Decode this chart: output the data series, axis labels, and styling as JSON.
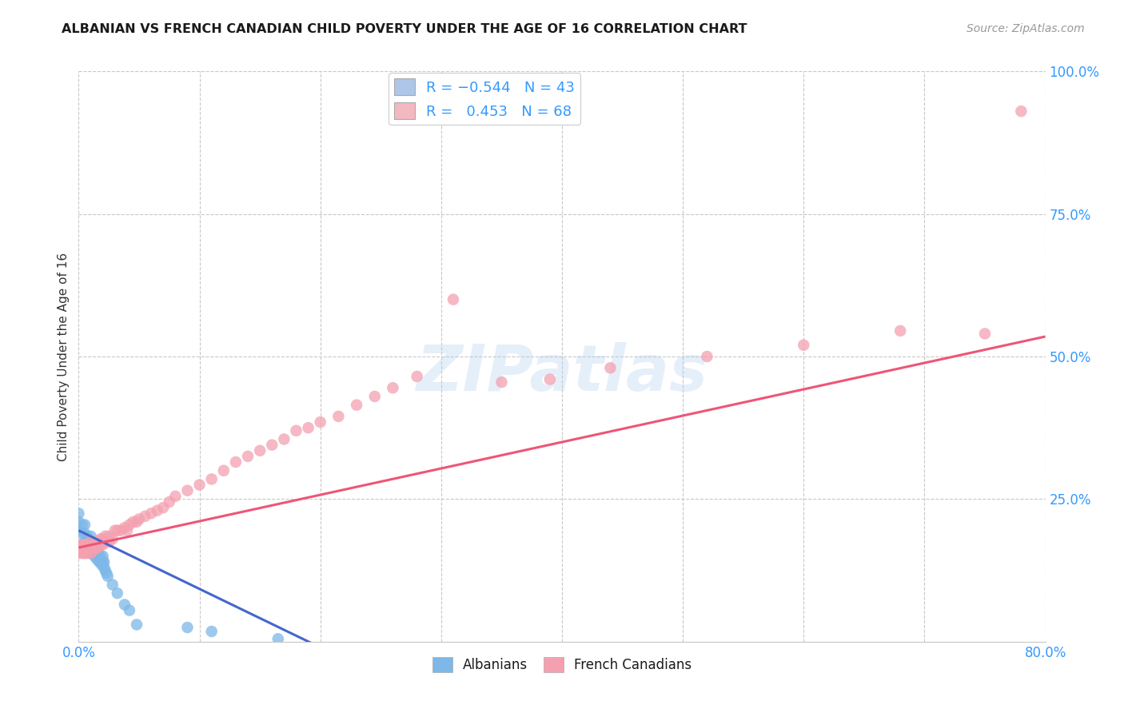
{
  "title": "ALBANIAN VS FRENCH CANADIAN CHILD POVERTY UNDER THE AGE OF 16 CORRELATION CHART",
  "source": "Source: ZipAtlas.com",
  "ylabel": "Child Poverty Under the Age of 16",
  "xlim": [
    0.0,
    0.8
  ],
  "ylim": [
    0.0,
    1.0
  ],
  "xticks": [
    0.0,
    0.1,
    0.2,
    0.3,
    0.4,
    0.5,
    0.6,
    0.7,
    0.8
  ],
  "xtick_labels": [
    "0.0%",
    "",
    "",
    "",
    "",
    "",
    "",
    "",
    "80.0%"
  ],
  "yticks": [
    0.0,
    0.25,
    0.5,
    0.75,
    1.0
  ],
  "ytick_labels": [
    "",
    "25.0%",
    "50.0%",
    "75.0%",
    "100.0%"
  ],
  "grid_color": "#c8c8c8",
  "background_color": "#ffffff",
  "watermark": "ZIPatlas",
  "legend_color1": "#aec6e8",
  "legend_color2": "#f4b8c1",
  "albanian_color": "#7db8e8",
  "french_color": "#f4a0b0",
  "tick_color": "#3399ff",
  "title_color": "#1a1a1a",
  "axis_label_color": "#333333",
  "legend_r_color": "#3399ff",
  "albanian_line": {
    "x0": 0.0,
    "x1": 0.2,
    "y0": 0.195,
    "y1": -0.01
  },
  "french_line": {
    "x0": 0.0,
    "x1": 0.8,
    "y0": 0.165,
    "y1": 0.535
  },
  "albanian_scatter_x": [
    0.0,
    0.0,
    0.0,
    0.003,
    0.003,
    0.005,
    0.005,
    0.005,
    0.007,
    0.007,
    0.008,
    0.008,
    0.01,
    0.01,
    0.01,
    0.01,
    0.012,
    0.012,
    0.013,
    0.013,
    0.015,
    0.015,
    0.016,
    0.016,
    0.017,
    0.018,
    0.018,
    0.019,
    0.02,
    0.02,
    0.021,
    0.021,
    0.022,
    0.023,
    0.024,
    0.028,
    0.032,
    0.038,
    0.042,
    0.048,
    0.09,
    0.11,
    0.165
  ],
  "albanian_scatter_y": [
    0.195,
    0.21,
    0.225,
    0.19,
    0.205,
    0.175,
    0.19,
    0.205,
    0.17,
    0.185,
    0.165,
    0.175,
    0.155,
    0.165,
    0.175,
    0.185,
    0.155,
    0.165,
    0.15,
    0.16,
    0.145,
    0.155,
    0.145,
    0.155,
    0.14,
    0.14,
    0.15,
    0.135,
    0.14,
    0.15,
    0.13,
    0.14,
    0.125,
    0.12,
    0.115,
    0.1,
    0.085,
    0.065,
    0.055,
    0.03,
    0.025,
    0.018,
    0.005
  ],
  "french_scatter_x": [
    0.0,
    0.0,
    0.003,
    0.003,
    0.005,
    0.005,
    0.007,
    0.007,
    0.008,
    0.01,
    0.01,
    0.01,
    0.012,
    0.012,
    0.013,
    0.015,
    0.015,
    0.016,
    0.018,
    0.018,
    0.02,
    0.02,
    0.022,
    0.022,
    0.025,
    0.025,
    0.028,
    0.03,
    0.032,
    0.035,
    0.038,
    0.04,
    0.042,
    0.045,
    0.048,
    0.05,
    0.055,
    0.06,
    0.065,
    0.07,
    0.075,
    0.08,
    0.09,
    0.1,
    0.11,
    0.12,
    0.13,
    0.14,
    0.15,
    0.16,
    0.17,
    0.18,
    0.19,
    0.2,
    0.215,
    0.23,
    0.245,
    0.26,
    0.28,
    0.31,
    0.35,
    0.39,
    0.44,
    0.52,
    0.6,
    0.68,
    0.75,
    0.78
  ],
  "french_scatter_y": [
    0.155,
    0.17,
    0.155,
    0.17,
    0.155,
    0.17,
    0.155,
    0.17,
    0.165,
    0.155,
    0.165,
    0.175,
    0.16,
    0.17,
    0.165,
    0.165,
    0.175,
    0.165,
    0.17,
    0.18,
    0.17,
    0.18,
    0.175,
    0.185,
    0.175,
    0.185,
    0.18,
    0.195,
    0.195,
    0.195,
    0.2,
    0.195,
    0.205,
    0.21,
    0.21,
    0.215,
    0.22,
    0.225,
    0.23,
    0.235,
    0.245,
    0.255,
    0.265,
    0.275,
    0.285,
    0.3,
    0.315,
    0.325,
    0.335,
    0.345,
    0.355,
    0.37,
    0.375,
    0.385,
    0.395,
    0.415,
    0.43,
    0.445,
    0.465,
    0.6,
    0.455,
    0.46,
    0.48,
    0.5,
    0.52,
    0.545,
    0.54,
    0.93
  ]
}
